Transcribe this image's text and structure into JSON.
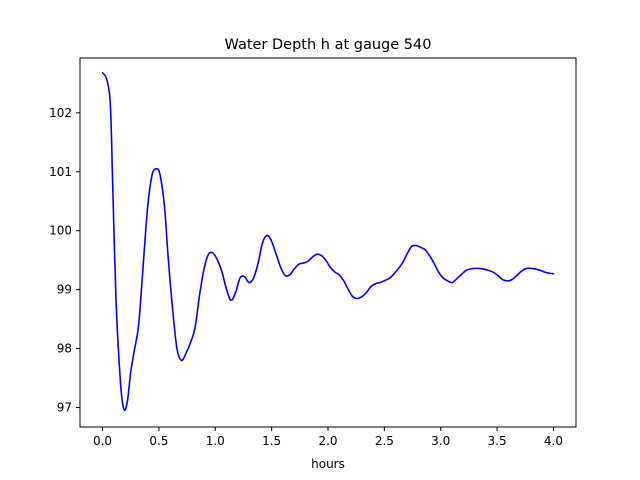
{
  "chart_data": {
    "type": "line",
    "title": "Water Depth h at gauge 540",
    "xlabel": "hours",
    "ylabel": "",
    "xlim": [
      -0.2,
      4.2
    ],
    "ylim": [
      96.67,
      102.93
    ],
    "xticks": [
      0.0,
      0.5,
      1.0,
      1.5,
      2.0,
      2.5,
      3.0,
      3.5,
      4.0
    ],
    "xtick_labels": [
      "0.0",
      "0.5",
      "1.0",
      "1.5",
      "2.0",
      "2.5",
      "3.0",
      "3.5",
      "4.0"
    ],
    "yticks": [
      97,
      98,
      99,
      100,
      101,
      102
    ],
    "ytick_labels": [
      "97",
      "98",
      "99",
      "100",
      "101",
      "102"
    ],
    "grid": false,
    "series": [
      {
        "color": "#0000ff",
        "x": [
          0.0,
          0.04,
          0.07,
          0.09,
          0.12,
          0.16,
          0.19,
          0.22,
          0.25,
          0.28,
          0.32,
          0.36,
          0.4,
          0.44,
          0.48,
          0.51,
          0.55,
          0.58,
          0.62,
          0.66,
          0.7,
          0.74,
          0.78,
          0.82,
          0.86,
          0.9,
          0.94,
          0.98,
          1.02,
          1.06,
          1.1,
          1.14,
          1.18,
          1.22,
          1.26,
          1.3,
          1.34,
          1.38,
          1.42,
          1.46,
          1.5,
          1.54,
          1.58,
          1.62,
          1.66,
          1.7,
          1.74,
          1.78,
          1.82,
          1.86,
          1.9,
          1.94,
          1.98,
          2.02,
          2.06,
          2.1,
          2.14,
          2.18,
          2.22,
          2.26,
          2.3,
          2.34,
          2.38,
          2.42,
          2.46,
          2.5,
          2.55,
          2.6,
          2.66,
          2.7,
          2.74,
          2.78,
          2.82,
          2.86,
          2.9,
          2.94,
          2.98,
          3.02,
          3.06,
          3.1,
          3.14,
          3.18,
          3.22,
          3.26,
          3.3,
          3.34,
          3.38,
          3.42,
          3.46,
          3.5,
          3.55,
          3.6,
          3.64,
          3.68,
          3.72,
          3.76,
          3.8,
          3.84,
          3.88,
          3.92,
          3.96,
          4.0
        ],
        "y": [
          102.68,
          102.55,
          102.1,
          100.8,
          98.8,
          97.4,
          96.97,
          97.1,
          97.6,
          97.95,
          98.4,
          99.4,
          100.4,
          100.95,
          101.05,
          100.95,
          100.4,
          99.6,
          98.7,
          98.0,
          97.8,
          97.92,
          98.1,
          98.35,
          98.9,
          99.35,
          99.6,
          99.62,
          99.5,
          99.3,
          99.0,
          98.82,
          98.95,
          99.2,
          99.22,
          99.12,
          99.2,
          99.45,
          99.8,
          99.92,
          99.82,
          99.6,
          99.38,
          99.24,
          99.25,
          99.35,
          99.43,
          99.45,
          99.48,
          99.55,
          99.6,
          99.58,
          99.5,
          99.38,
          99.3,
          99.25,
          99.15,
          99.0,
          98.88,
          98.85,
          98.88,
          98.95,
          99.05,
          99.1,
          99.12,
          99.15,
          99.2,
          99.3,
          99.45,
          99.6,
          99.73,
          99.75,
          99.72,
          99.68,
          99.58,
          99.45,
          99.3,
          99.2,
          99.15,
          99.12,
          99.18,
          99.25,
          99.32,
          99.35,
          99.36,
          99.36,
          99.35,
          99.33,
          99.3,
          99.25,
          99.17,
          99.15,
          99.18,
          99.25,
          99.32,
          99.36,
          99.36,
          99.35,
          99.33,
          99.3,
          99.28,
          99.27
        ]
      }
    ]
  }
}
